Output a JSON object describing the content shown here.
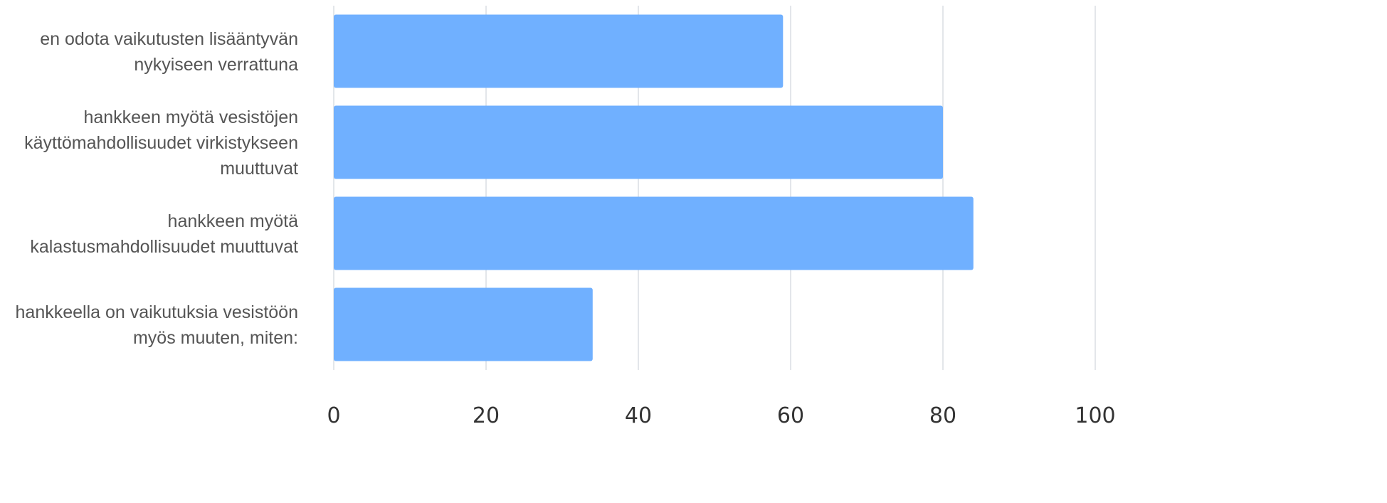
{
  "chart_data": {
    "type": "bar",
    "orientation": "horizontal",
    "categories": [
      [
        "en odota vaikutusten lisääntyvän",
        "nykyiseen verrattuna"
      ],
      [
        "hankkeen myötä vesistöjen",
        "käyttömahdollisuudet virkistykseen",
        "muuttuvat"
      ],
      [
        "hankkeen myötä",
        "kalastusmahdollisuudet muuttuvat"
      ],
      [
        "hankkeella on vaikutuksia vesistöön",
        "myös muuten, miten:"
      ]
    ],
    "values": [
      59,
      80,
      84,
      34
    ],
    "xlim": [
      0,
      100
    ],
    "xticks": [
      "0",
      "20",
      "40",
      "60",
      "80",
      "100"
    ],
    "title": "",
    "xlabel": "",
    "ylabel": "",
    "grid": true,
    "bar_color": "#70b0ff"
  }
}
